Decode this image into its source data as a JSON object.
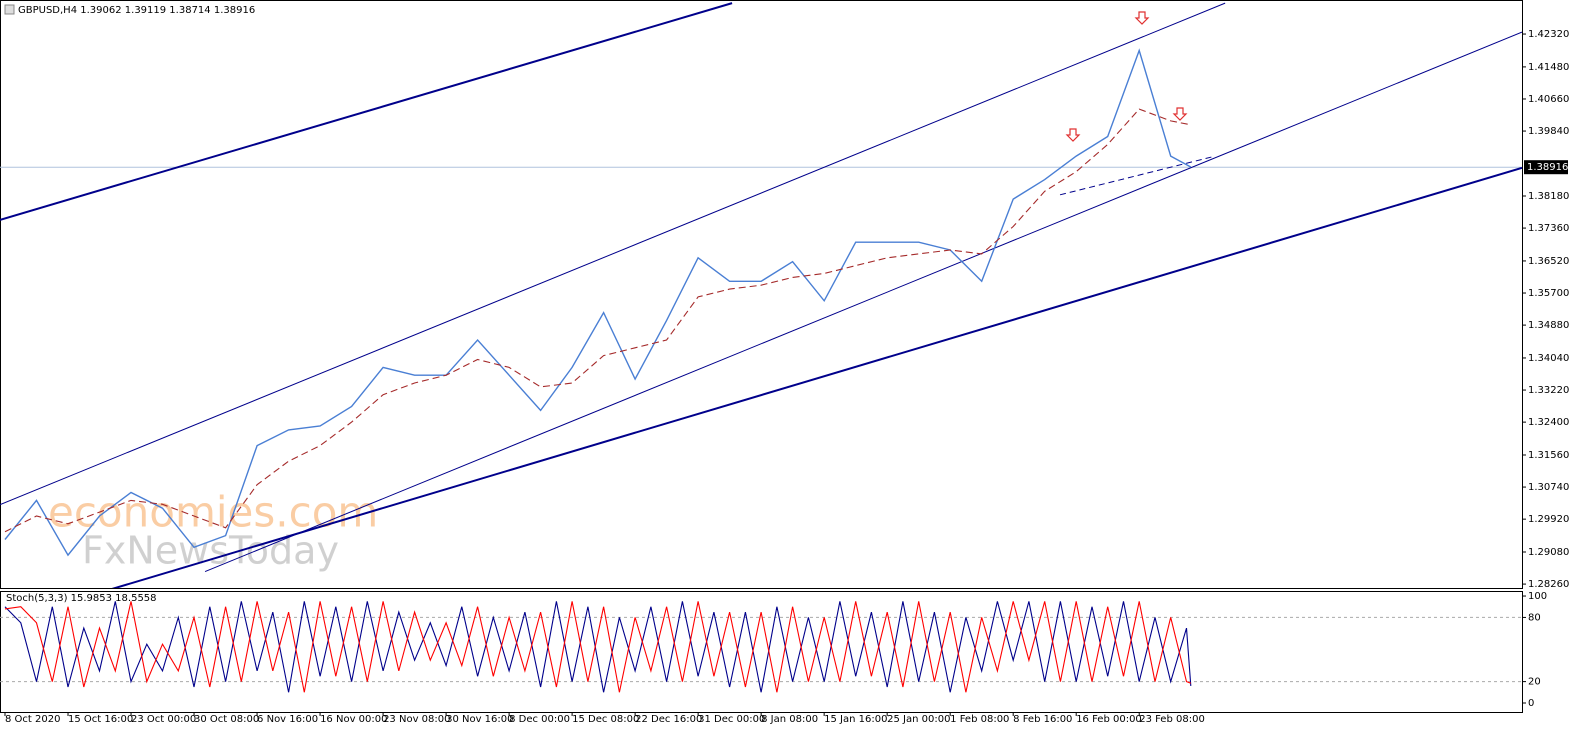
{
  "chart_data": [
    {
      "type": "line",
      "title": "GBPUSD,H4  1.39062 1.39119 1.38714 1.38916",
      "watermark": [
        "economies.com",
        "FxNewsToday"
      ],
      "last_price": 1.38916,
      "xlim": [
        -3.5,
        1059.3
      ],
      "ylim": [
        1.2816,
        1.4319
      ],
      "yticks": [
        {
          "value": 1.4232,
          "label": "1.42320"
        },
        {
          "value": 1.4148,
          "label": "1.41480"
        },
        {
          "value": 1.4066,
          "label": "1.40660"
        },
        {
          "value": 1.3984,
          "label": "1.39840"
        },
        {
          "value": 1.3818,
          "label": "1.38180"
        },
        {
          "value": 1.3736,
          "label": "1.37360"
        },
        {
          "value": 1.3652,
          "label": "1.36520"
        },
        {
          "value": 1.357,
          "label": "1.35700"
        },
        {
          "value": 1.3488,
          "label": "1.34880"
        },
        {
          "value": 1.3404,
          "label": "1.34040"
        },
        {
          "value": 1.3322,
          "label": "1.33220"
        },
        {
          "value": 1.324,
          "label": "1.32400"
        },
        {
          "value": 1.3156,
          "label": "1.31560"
        },
        {
          "value": 1.3074,
          "label": "1.30740"
        },
        {
          "value": 1.2992,
          "label": "1.29920"
        },
        {
          "value": 1.2908,
          "label": "1.29080"
        },
        {
          "value": 1.2826,
          "label": "1.28260"
        }
      ],
      "x": [
        0,
        22,
        44,
        66,
        88,
        110,
        132,
        154,
        176,
        198,
        220,
        242,
        264,
        286,
        308,
        330,
        352,
        374,
        396,
        418,
        440,
        462,
        484,
        506,
        528,
        550,
        572,
        594,
        616,
        638,
        660,
        682,
        704,
        726,
        748,
        770,
        792,
        814,
        828
      ],
      "series": [
        {
          "color": "#4a7fd4",
          "values": [
            1.294,
            1.304,
            1.29,
            1.3,
            1.306,
            1.302,
            1.292,
            1.295,
            1.318,
            1.322,
            1.323,
            1.328,
            1.338,
            1.336,
            1.336,
            1.345,
            1.336,
            1.327,
            1.338,
            1.352,
            1.335,
            1.35,
            1.366,
            1.36,
            1.36,
            1.365,
            1.355,
            1.37,
            1.37,
            1.37,
            1.368,
            1.36,
            1.381,
            1.386,
            1.392,
            1.397,
            1.419,
            1.392,
            1.3892
          ]
        },
        {
          "color": "#a52a2a",
          "dashed": true,
          "values": [
            1.296,
            1.3,
            1.298,
            1.301,
            1.304,
            1.303,
            1.3,
            1.297,
            1.308,
            1.314,
            1.318,
            1.324,
            1.331,
            1.334,
            1.336,
            1.34,
            1.338,
            1.333,
            1.334,
            1.341,
            1.343,
            1.345,
            1.356,
            1.358,
            1.359,
            1.361,
            1.362,
            1.364,
            1.366,
            1.367,
            1.368,
            1.367,
            1.374,
            1.383,
            1.388,
            1.395,
            1.404,
            1.401,
            1.4
          ]
        }
      ],
      "trend_lines": [
        {
          "x": [
            -3.5,
            507.7
          ],
          "y": [
            1.3757,
            1.4311
          ],
          "color": "#00008b",
          "style": "thick"
        },
        {
          "x": [
            -3.5,
            852
          ],
          "y": [
            1.3029,
            1.4311
          ],
          "color": "#00008b",
          "style": "thin"
        },
        {
          "x": [
            139.7,
            1059.3
          ],
          "y": [
            1.2858,
            1.4237
          ],
          "color": "#00008b",
          "style": "thin"
        },
        {
          "x": [
            73.3,
            1059.3
          ],
          "y": [
            1.2812,
            1.389
          ],
          "color": "#00008b",
          "style": "thick"
        },
        {
          "x": [
            736.7,
            842.9
          ],
          "y": [
            1.3821,
            1.3918
          ],
          "color": "#00008b",
          "style": "dashed"
        }
      ]
    },
    {
      "type": "line",
      "title": "Stoch(5,3,3) 15.9853 18.5558",
      "xlim": [
        -3.5,
        1059.3
      ],
      "ylim": [
        -8.4,
        104.7
      ],
      "yticks": [
        0,
        20,
        80,
        100
      ],
      "xticks": [
        {
          "value": 0,
          "label": "8 Oct 2020"
        },
        {
          "value": 44,
          "label": "15 Oct 16:00"
        },
        {
          "value": 88,
          "label": "23 Oct 00:00"
        },
        {
          "value": 132,
          "label": "30 Oct 08:00"
        },
        {
          "value": 176,
          "label": "6 Nov 16:00"
        },
        {
          "value": 220,
          "label": "16 Nov 00:00"
        },
        {
          "value": 264,
          "label": "23 Nov 08:00"
        },
        {
          "value": 308,
          "label": "30 Nov 16:00"
        },
        {
          "value": 352,
          "label": "8 Dec 00:00"
        },
        {
          "value": 396,
          "label": "15 Dec 08:00"
        },
        {
          "value": 440,
          "label": "22 Dec 16:00"
        },
        {
          "value": 484,
          "label": "31 Dec 00:00"
        },
        {
          "value": 528,
          "label": "8 Jan 08:00"
        },
        {
          "value": 572,
          "label": "15 Jan 16:00"
        },
        {
          "value": 616,
          "label": "25 Jan 00:00"
        },
        {
          "value": 660,
          "label": "1 Feb 08:00"
        },
        {
          "value": 704,
          "label": "8 Feb 16:00"
        },
        {
          "value": 748,
          "label": "16 Feb 00:00"
        },
        {
          "value": 792,
          "label": "23 Feb 08:00"
        }
      ],
      "x": [
        0,
        11,
        22,
        33,
        44,
        55,
        66,
        77,
        88,
        99,
        110,
        121,
        132,
        143,
        154,
        165,
        176,
        187,
        198,
        209,
        220,
        231,
        242,
        253,
        264,
        275,
        286,
        297,
        308,
        319,
        330,
        341,
        352,
        363,
        374,
        385,
        396,
        407,
        418,
        429,
        440,
        451,
        462,
        473,
        484,
        495,
        506,
        517,
        528,
        539,
        550,
        561,
        572,
        583,
        594,
        605,
        616,
        627,
        638,
        649,
        660,
        671,
        682,
        693,
        704,
        715,
        726,
        737,
        748,
        759,
        770,
        781,
        792,
        803,
        814,
        825,
        828
      ],
      "series": [
        {
          "color": "#00008b",
          "values": [
            90,
            75,
            20,
            90,
            15,
            70,
            30,
            95,
            20,
            55,
            30,
            80,
            15,
            90,
            20,
            95,
            30,
            85,
            10,
            95,
            25,
            90,
            20,
            95,
            30,
            85,
            40,
            75,
            35,
            90,
            25,
            80,
            30,
            85,
            15,
            95,
            20,
            90,
            10,
            80,
            30,
            90,
            20,
            95,
            25,
            85,
            15,
            85,
            10,
            90,
            20,
            80,
            20,
            95,
            25,
            85,
            15,
            95,
            20,
            85,
            10,
            80,
            30,
            95,
            40,
            95,
            20,
            95,
            20,
            90,
            25,
            95,
            20,
            80,
            20,
            70,
            15.9853
          ]
        },
        {
          "color": "#ff0000",
          "values": [
            88,
            90,
            75,
            20,
            90,
            15,
            70,
            30,
            95,
            20,
            55,
            30,
            80,
            15,
            90,
            20,
            95,
            30,
            85,
            10,
            95,
            25,
            90,
            20,
            95,
            30,
            85,
            40,
            75,
            35,
            90,
            25,
            80,
            30,
            85,
            15,
            95,
            20,
            90,
            10,
            80,
            30,
            90,
            20,
            95,
            25,
            85,
            15,
            85,
            10,
            90,
            20,
            80,
            20,
            95,
            25,
            85,
            15,
            95,
            20,
            85,
            10,
            80,
            30,
            95,
            40,
            95,
            20,
            95,
            20,
            90,
            25,
            95,
            20,
            80,
            20,
            18.5558
          ]
        }
      ]
    }
  ]
}
